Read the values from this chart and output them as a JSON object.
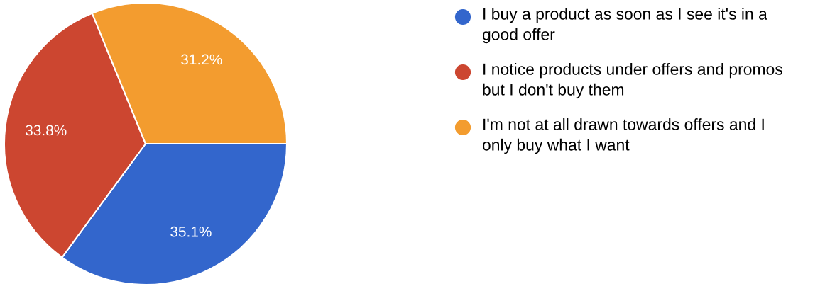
{
  "chart_data": {
    "type": "pie",
    "categories": [
      "I buy a product as soon as I see it's in a good offer",
      "I notice products under offers and promos but I don't buy them",
      "I'm not at all drawn towards offers and I only buy what I want"
    ],
    "values": [
      35.1,
      33.8,
      31.2
    ],
    "value_labels": [
      "35.1%",
      "33.8%",
      "31.2%"
    ],
    "colors": [
      "#3366cc",
      "#cc4630",
      "#f39c2f"
    ],
    "legend": "right"
  }
}
